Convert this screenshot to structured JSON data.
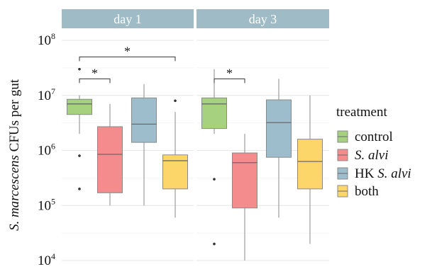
{
  "chart_data": {
    "type": "boxplot",
    "ylabel_italic": "S. marcescens",
    "ylabel_rest": " CFUs per gut",
    "xlabel": "",
    "yscale": "log10",
    "ylim": [
      10000,
      100000000
    ],
    "y_ticks": [
      {
        "value": 10000,
        "base": "10",
        "exp": "4"
      },
      {
        "value": 100000,
        "base": "10",
        "exp": "5"
      },
      {
        "value": 1000000,
        "base": "10",
        "exp": "6"
      },
      {
        "value": 10000000,
        "base": "10",
        "exp": "7"
      },
      {
        "value": 100000000,
        "base": "10",
        "exp": "8"
      }
    ],
    "grid": true,
    "legend": {
      "title": "treatment",
      "placement": "right",
      "entries": [
        {
          "key": "control",
          "parts": [
            {
              "text": "control",
              "italic": false
            }
          ],
          "color": "#a6d27f"
        },
        {
          "key": "s_alvi",
          "parts": [
            {
              "text": "S. alvi",
              "italic": true
            }
          ],
          "color": "#f48b8d"
        },
        {
          "key": "hk_s_alvi",
          "parts": [
            {
              "text": "HK ",
              "italic": false
            },
            {
              "text": "S. alvi",
              "italic": true
            }
          ],
          "color": "#9dbccc"
        },
        {
          "key": "both",
          "parts": [
            {
              "text": "both",
              "italic": false
            }
          ],
          "color": "#fdd66a"
        }
      ]
    },
    "panels": [
      {
        "strip": "day 1",
        "groups": [
          {
            "treatment": "control",
            "min": 2000000,
            "q1": 4500000,
            "median": 7000000,
            "q3": 8500000,
            "max": 10000000,
            "outliers": [
              30000000,
              800000,
              200000
            ]
          },
          {
            "treatment": "s_alvi",
            "min": 100000,
            "q1": 170000,
            "median": 850000,
            "q3": 2700000,
            "max": 7000000,
            "outliers": []
          },
          {
            "treatment": "hk_s_alvi",
            "min": 100000,
            "q1": 1400000,
            "median": 3000000,
            "q3": 9000000,
            "max": 16000000,
            "outliers": []
          },
          {
            "treatment": "both",
            "min": 60000,
            "q1": 200000,
            "median": 650000,
            "q3": 830000,
            "max": 5000000,
            "outliers": [
              8000000
            ]
          }
        ],
        "brackets": [
          {
            "from": "control",
            "to": "s_alvi",
            "label": "*",
            "y": 20000000
          },
          {
            "from": "control",
            "to": "both",
            "label": "*",
            "y": 50000000
          }
        ]
      },
      {
        "strip": "day 3",
        "groups": [
          {
            "treatment": "control",
            "min": 2000000,
            "q1": 2500000,
            "median": 7000000,
            "q3": 9000000,
            "max": 30000000,
            "outliers": [
              300000,
              20000
            ]
          },
          {
            "treatment": "s_alvi",
            "min": 10000,
            "q1": 90000,
            "median": 600000,
            "q3": 900000,
            "max": 2000000,
            "outliers": []
          },
          {
            "treatment": "hk_s_alvi",
            "min": 60000,
            "q1": 750000,
            "median": 3200000,
            "q3": 8300000,
            "max": 20000000,
            "outliers": []
          },
          {
            "treatment": "both",
            "min": 20000,
            "q1": 200000,
            "median": 630000,
            "q3": 1600000,
            "max": 10000000,
            "outliers": []
          }
        ],
        "brackets": [
          {
            "from": "control",
            "to": "s_alvi",
            "label": "*",
            "y": 20000000
          }
        ]
      }
    ]
  }
}
